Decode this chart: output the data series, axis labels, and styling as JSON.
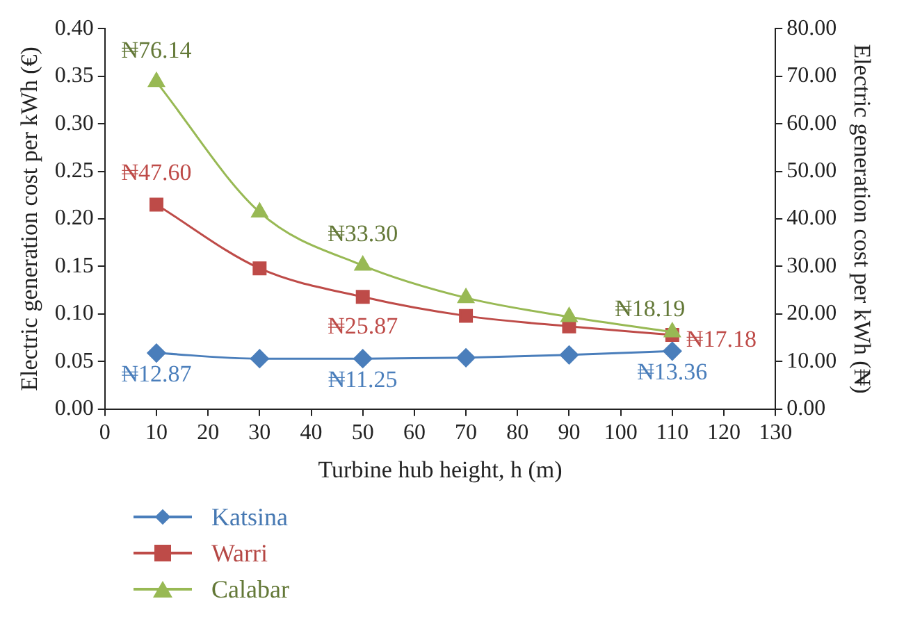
{
  "chart_data": {
    "type": "line",
    "xlabel": "Turbine hub height, h (m)",
    "ylabel": "Electric generation cost per kWh (€)",
    "y2label": "Electric generation cost per kWh (₦)",
    "x": [
      10,
      30,
      50,
      70,
      90,
      110
    ],
    "series": [
      {
        "name": "Katsina",
        "color": "#4a7ebb",
        "marker": "diamond",
        "values": [
          0.059,
          0.053,
          0.053,
          0.054,
          0.057,
          0.061
        ]
      },
      {
        "name": "Warri",
        "color": "#be4b48",
        "marker": "square",
        "values": [
          0.215,
          0.148,
          0.118,
          0.098,
          0.087,
          0.078
        ]
      },
      {
        "name": "Calabar",
        "color": "#98b954",
        "marker": "triangle",
        "values": [
          0.344,
          0.207,
          0.151,
          0.117,
          0.097,
          0.081
        ]
      }
    ],
    "annotations": [
      {
        "text": "₦12.87",
        "x": 10,
        "y": 0.059
      },
      {
        "text": "₦11.25",
        "x": 50,
        "y": 0.053
      },
      {
        "text": "₦13.36",
        "x": 110,
        "y": 0.061
      },
      {
        "text": "₦47.60",
        "x": 10,
        "y": 0.215
      },
      {
        "text": "₦25.87",
        "x": 50,
        "y": 0.118
      },
      {
        "text": "₦17.18",
        "x": 110,
        "y": 0.078
      },
      {
        "text": "₦76.14",
        "x": 10,
        "y": 0.344
      },
      {
        "text": "₦33.30",
        "x": 50,
        "y": 0.151
      },
      {
        "text": "₦18.19",
        "x": 110,
        "y": 0.081
      }
    ],
    "xlim": [
      0,
      130
    ],
    "xticks": [
      0,
      10,
      20,
      30,
      40,
      50,
      60,
      70,
      80,
      90,
      100,
      110,
      120,
      130
    ],
    "ylim": [
      0,
      0.4
    ],
    "yticks": [
      {
        "value": 0,
        "label": "0.00"
      },
      {
        "value": 0.05,
        "label": "0.05"
      },
      {
        "value": 0.1,
        "label": "0.10"
      },
      {
        "value": 0.15,
        "label": "0.15"
      },
      {
        "value": 0.2,
        "label": "0.20"
      },
      {
        "value": 0.25,
        "label": "0.25"
      },
      {
        "value": 0.3,
        "label": "0.30"
      },
      {
        "value": 0.35,
        "label": "0.35"
      },
      {
        "value": 0.4,
        "label": "0.40"
      }
    ],
    "y2lim": [
      0,
      80
    ],
    "y2ticks": [
      {
        "value": 0,
        "label": "0.00"
      },
      {
        "value": 10,
        "label": "10.00"
      },
      {
        "value": 20,
        "label": "20.00"
      },
      {
        "value": 30,
        "label": "30.00"
      },
      {
        "value": 40,
        "label": "40.00"
      },
      {
        "value": 50,
        "label": "50.00"
      },
      {
        "value": 60,
        "label": "60.00"
      },
      {
        "value": 70,
        "label": "70.00"
      },
      {
        "value": 80,
        "label": "80.00"
      }
    ],
    "grid": false,
    "legend": "bottom left"
  }
}
